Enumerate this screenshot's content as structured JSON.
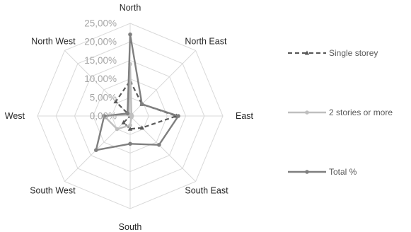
{
  "chart_data": {
    "type": "radar",
    "title": "",
    "categories": [
      "North",
      "North East",
      "East",
      "South East",
      "South",
      "South West",
      "West",
      "North West"
    ],
    "radial_ticks": [
      "0,00%",
      "5,00%",
      "10,00%",
      "15,00%",
      "20,00%",
      "25,00%"
    ],
    "rlim": [
      0,
      25
    ],
    "grid": true,
    "legend_position": "right",
    "series": [
      {
        "name": "Single storey",
        "color": "#595959",
        "style": "dashed",
        "marker": "triangle",
        "values": [
          9.5,
          4.5,
          12.5,
          4.5,
          3.5,
          2.5,
          0.0,
          5.5
        ]
      },
      {
        "name": "2 stories or more",
        "color": "#bfbfbf",
        "style": "solid",
        "marker": "circle",
        "values": [
          14.0,
          0.5,
          0.5,
          0.5,
          2.5,
          5.0,
          7.0,
          0.5
        ]
      },
      {
        "name": "Total %",
        "color": "#7f7f7f",
        "style": "solid",
        "marker": "circle",
        "values": [
          22.0,
          4.5,
          13.0,
          11.0,
          7.5,
          13.0,
          7.0,
          1.0
        ]
      }
    ]
  }
}
